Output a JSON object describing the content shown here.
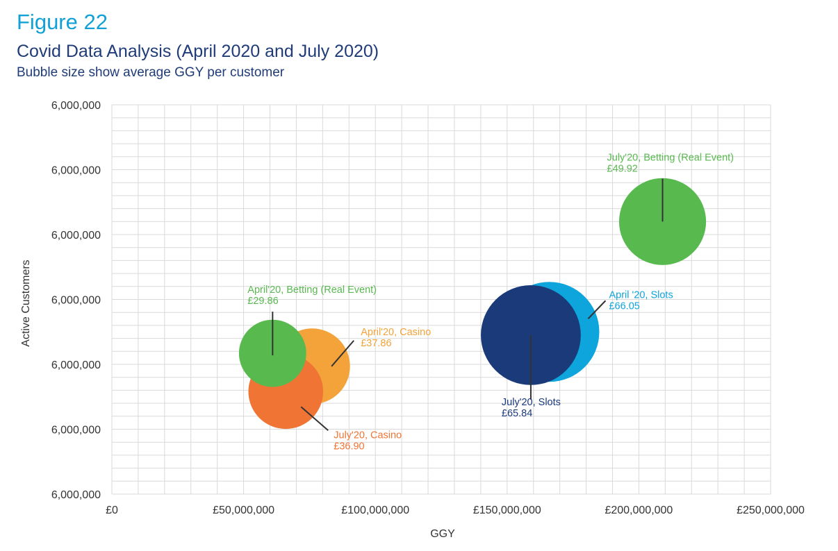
{
  "figure_label": "Figure 22",
  "header": {
    "title": "Covid Data Analysis (April 2020 and July 2020)",
    "subtitle": "Bubble size show average GGY per customer"
  },
  "chart_data": {
    "type": "scatter",
    "variant": "bubble",
    "title": "Covid Data Analysis (April 2020 and July 2020)",
    "subtitle": "Bubble size show average GGY per customer",
    "xlabel": "GGY",
    "ylabel": "Active Customers",
    "xlim": [
      0,
      250000000
    ],
    "x_ticks": [
      0,
      50000000,
      100000000,
      150000000,
      200000000,
      250000000
    ],
    "x_tick_labels": [
      "£0",
      "£50,000,000",
      "£100,000,000",
      "£150,000,000",
      "£200,000,000",
      "£250,000,000"
    ],
    "ylim": [
      0,
      6
    ],
    "y_ticks": [
      0,
      1,
      2,
      3,
      4,
      5,
      6
    ],
    "y_tick_labels": [
      "6,000,000",
      "6,000,000",
      "6,000,000",
      "6,000,000",
      "6,000,000",
      "6,000,000",
      "6,000,000"
    ],
    "grid": true,
    "series": [
      {
        "id": "april-casino",
        "name": "April'20, Casino",
        "value_label": "£37.86",
        "x": 76000000,
        "y": 1.97,
        "size": 37.86,
        "color": "#f4a23a"
      },
      {
        "id": "july-casino",
        "name": "July'20, Casino",
        "value_label": "£36.90",
        "x": 66000000,
        "y": 1.58,
        "size": 36.9,
        "color": "#f07535"
      },
      {
        "id": "april-betting",
        "name": "April'20, Betting (Real Event)",
        "value_label": "£29.86",
        "x": 61000000,
        "y": 2.17,
        "size": 29.86,
        "color": "#58b94f"
      },
      {
        "id": "april-slots",
        "name": "April '20, Slots",
        "value_label": "£66.05",
        "x": 166000000,
        "y": 2.5,
        "size": 66.05,
        "color": "#0ea4dc"
      },
      {
        "id": "july-slots",
        "name": "July'20, Slots",
        "value_label": "£65.84",
        "x": 159000000,
        "y": 2.45,
        "size": 65.84,
        "color": "#1b3a7a"
      },
      {
        "id": "july-betting",
        "name": "July'20, Betting (Real Event)",
        "value_label": "£49.92",
        "x": 209000000,
        "y": 4.2,
        "size": 49.92,
        "color": "#58b94f"
      }
    ]
  }
}
